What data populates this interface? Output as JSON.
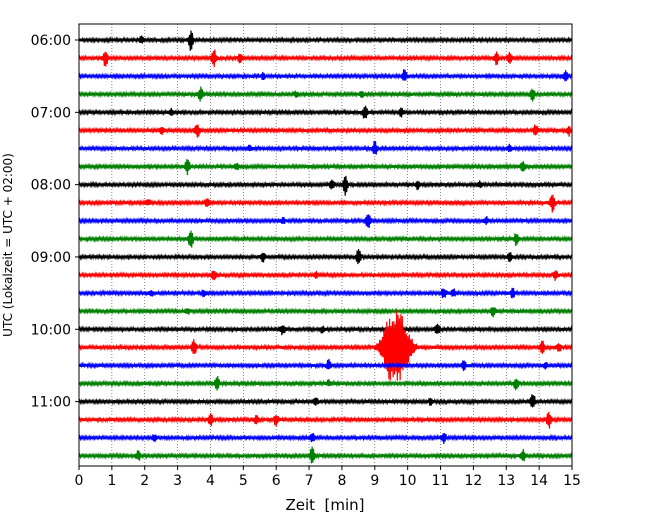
{
  "chart_data": {
    "type": "line",
    "title": "",
    "xlabel": "Zeit  [min]",
    "ylabel": "UTC (Lokalzeit = UTC + 02:00)",
    "xlim": [
      0,
      15
    ],
    "x_ticks": [
      0,
      1,
      2,
      3,
      4,
      5,
      6,
      7,
      8,
      9,
      10,
      11,
      12,
      13,
      14,
      15
    ],
    "x_grid": true,
    "y_tick_labels": [
      "06:00",
      "07:00",
      "08:00",
      "09:00",
      "10:00",
      "11:00"
    ],
    "trace_colors": [
      "#000000",
      "#ff0000",
      "#0000ff",
      "#008000"
    ],
    "traces": [
      {
        "start": "06:00",
        "events": [
          [
            1.9,
            3
          ],
          [
            3.4,
            10
          ]
        ]
      },
      {
        "start": "06:15",
        "events": [
          [
            0.8,
            9
          ],
          [
            4.1,
            9
          ],
          [
            4.9,
            4
          ],
          [
            12.7,
            6
          ],
          [
            13.1,
            5
          ]
        ]
      },
      {
        "start": "06:30",
        "events": [
          [
            5.6,
            3
          ],
          [
            9.9,
            6
          ],
          [
            14.8,
            5
          ]
        ]
      },
      {
        "start": "06:45",
        "events": [
          [
            3.7,
            8
          ],
          [
            6.6,
            3
          ],
          [
            8.6,
            3
          ],
          [
            13.8,
            6
          ]
        ]
      },
      {
        "start": "07:00",
        "events": [
          [
            2.8,
            3
          ],
          [
            8.7,
            7
          ],
          [
            9.8,
            4
          ]
        ]
      },
      {
        "start": "07:15",
        "events": [
          [
            2.5,
            4
          ],
          [
            3.6,
            7
          ],
          [
            13.9,
            6
          ],
          [
            14.9,
            5
          ]
        ]
      },
      {
        "start": "07:30",
        "events": [
          [
            5.2,
            3
          ],
          [
            9.0,
            7
          ],
          [
            13.1,
            4
          ]
        ]
      },
      {
        "start": "07:45",
        "events": [
          [
            3.3,
            7
          ],
          [
            4.8,
            3
          ],
          [
            13.5,
            6
          ]
        ]
      },
      {
        "start": "08:00",
        "events": [
          [
            7.7,
            5
          ],
          [
            8.1,
            10
          ],
          [
            10.3,
            4
          ],
          [
            12.2,
            3
          ]
        ]
      },
      {
        "start": "08:15",
        "events": [
          [
            2.1,
            3
          ],
          [
            3.9,
            5
          ],
          [
            14.4,
            9
          ]
        ]
      },
      {
        "start": "08:30",
        "events": [
          [
            6.2,
            3
          ],
          [
            8.8,
            8
          ],
          [
            12.4,
            3
          ]
        ]
      },
      {
        "start": "08:45",
        "events": [
          [
            3.4,
            10
          ],
          [
            13.3,
            6
          ]
        ]
      },
      {
        "start": "09:00",
        "events": [
          [
            5.6,
            5
          ],
          [
            8.5,
            9
          ],
          [
            13.1,
            4
          ]
        ]
      },
      {
        "start": "09:15",
        "events": [
          [
            4.1,
            5
          ],
          [
            7.2,
            3
          ],
          [
            14.5,
            5
          ]
        ]
      },
      {
        "start": "09:30",
        "events": [
          [
            2.2,
            3
          ],
          [
            3.8,
            3
          ],
          [
            11.1,
            6
          ],
          [
            11.4,
            4
          ],
          [
            13.2,
            5
          ]
        ]
      },
      {
        "start": "09:45",
        "events": [
          [
            3.3,
            3
          ],
          [
            12.6,
            5
          ]
        ]
      },
      {
        "start": "10:00",
        "events": [
          [
            6.2,
            5
          ],
          [
            7.4,
            3
          ],
          [
            10.9,
            6
          ]
        ]
      },
      {
        "start": "10:15",
        "events": [
          [
            3.5,
            8
          ],
          [
            9.4,
            24
          ],
          [
            9.7,
            28
          ],
          [
            9.95,
            14
          ],
          [
            14.1,
            7
          ],
          [
            14.6,
            5
          ]
        ]
      },
      {
        "start": "10:30",
        "events": [
          [
            7.6,
            5
          ],
          [
            11.7,
            5
          ],
          [
            14.2,
            3
          ]
        ]
      },
      {
        "start": "10:45",
        "events": [
          [
            4.2,
            7
          ],
          [
            7.6,
            3
          ],
          [
            13.3,
            6
          ]
        ]
      },
      {
        "start": "11:00",
        "events": [
          [
            7.2,
            4
          ],
          [
            10.7,
            3
          ],
          [
            13.8,
            9
          ]
        ]
      },
      {
        "start": "11:15",
        "events": [
          [
            4.0,
            6
          ],
          [
            5.4,
            5
          ],
          [
            6.0,
            6
          ],
          [
            14.3,
            8
          ]
        ]
      },
      {
        "start": "11:30",
        "events": [
          [
            2.3,
            3
          ],
          [
            7.1,
            5
          ],
          [
            11.1,
            5
          ]
        ]
      },
      {
        "start": "11:45",
        "events": [
          [
            1.8,
            5
          ],
          [
            7.1,
            9
          ],
          [
            13.5,
            6
          ]
        ]
      }
    ]
  }
}
